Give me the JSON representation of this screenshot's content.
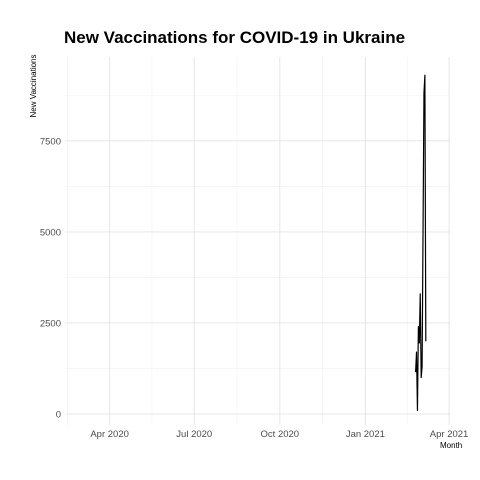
{
  "chart_data": {
    "type": "line",
    "title": "New Vaccinations for COVID-19 in Ukraine",
    "xlabel": "Month",
    "ylabel": "New Vaccinations",
    "xlim": [
      "2020-02-13",
      "2021-04-02"
    ],
    "ylim": [
      -300,
      9800
    ],
    "y_ticks": [
      0,
      2500,
      5000,
      7500
    ],
    "x_ticks": [
      {
        "date": "2020-04-01",
        "label": "Apr 2020"
      },
      {
        "date": "2020-07-01",
        "label": "Jul 2020"
      },
      {
        "date": "2020-10-01",
        "label": "Oct 2020"
      },
      {
        "date": "2021-01-01",
        "label": "Jan 2021"
      },
      {
        "date": "2021-04-01",
        "label": "Apr 2021"
      }
    ],
    "grid": true,
    "series": [
      {
        "color": "#000000",
        "points": [
          [
            "2021-02-24",
            1150
          ],
          [
            "2021-02-25",
            1700
          ],
          [
            "2021-02-26",
            100
          ],
          [
            "2021-02-27",
            2400
          ],
          [
            "2021-02-28",
            1950
          ],
          [
            "2021-03-01",
            3300
          ],
          [
            "2021-03-02",
            1000
          ],
          [
            "2021-03-03",
            1300
          ],
          [
            "2021-03-04",
            5000
          ],
          [
            "2021-03-05",
            8800
          ],
          [
            "2021-03-06",
            9300
          ],
          [
            "2021-03-07",
            2000
          ]
        ]
      }
    ]
  }
}
